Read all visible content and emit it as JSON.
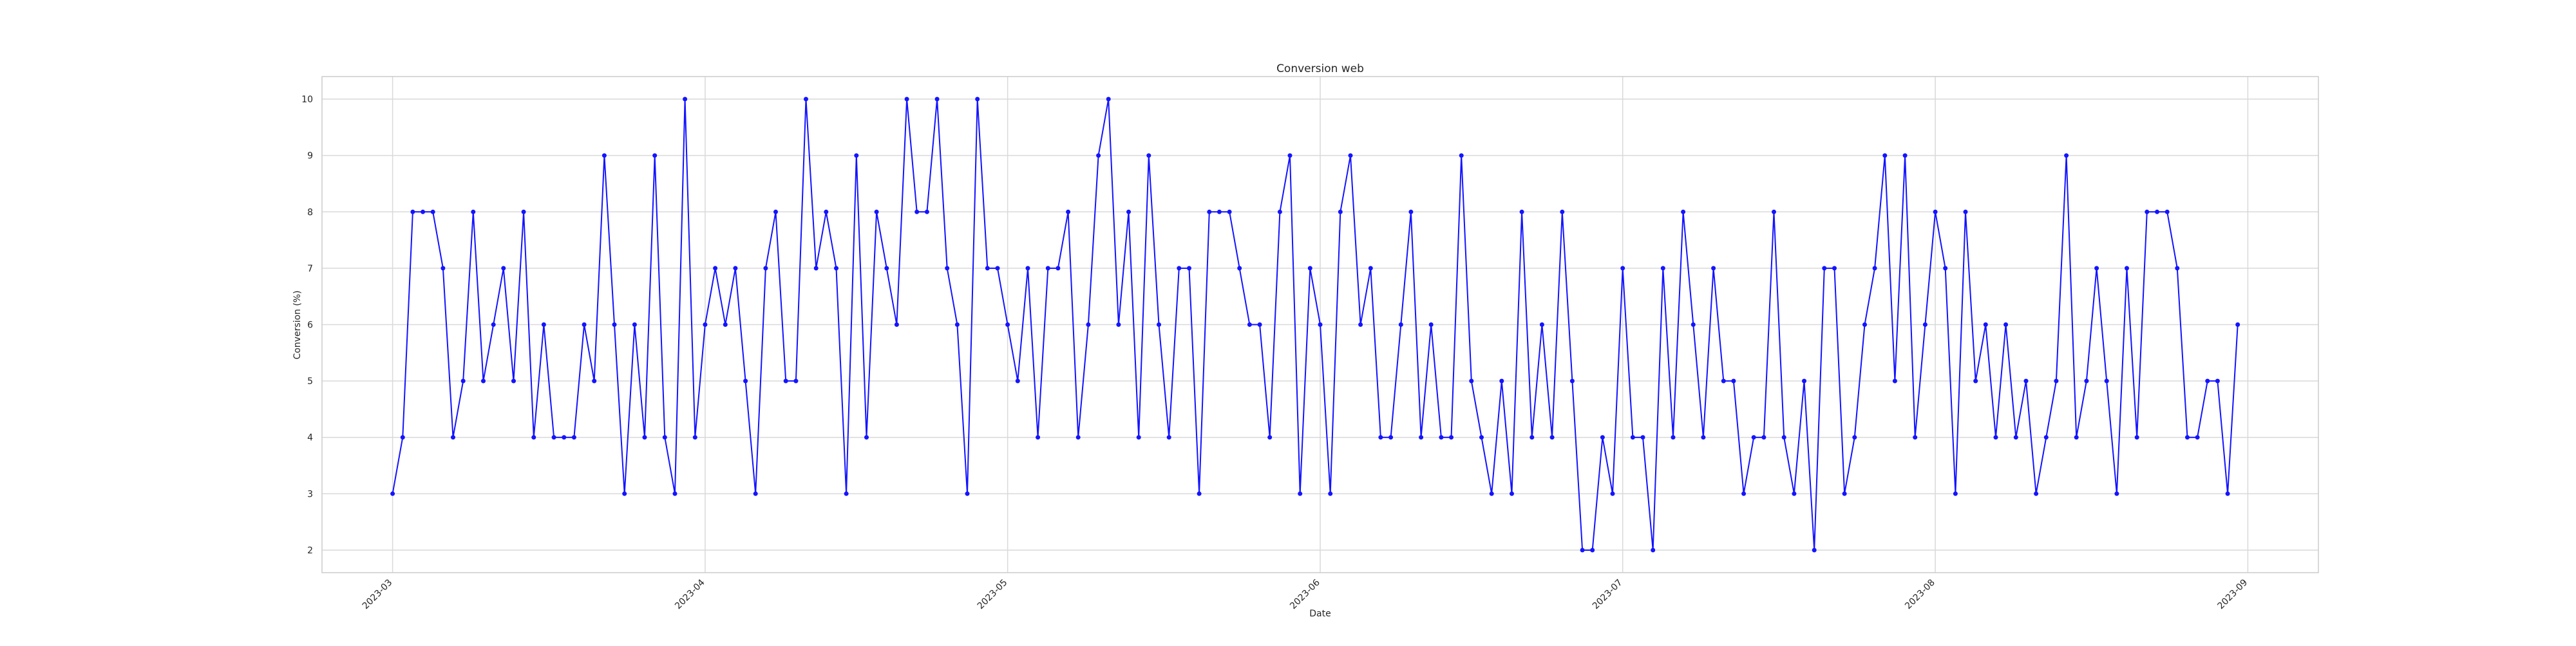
{
  "chart_data": {
    "type": "line",
    "title": "Conversion web",
    "xlabel": "Date",
    "ylabel": "Conversion (%)",
    "grid": true,
    "legend": "none",
    "series_color": "#1414ff",
    "ylim": [
      1.6,
      10.4
    ],
    "yticks": [
      2,
      3,
      4,
      5,
      6,
      7,
      8,
      9,
      10
    ],
    "xlim": [
      "2023-02-22",
      "2023-09-08"
    ],
    "xticks": [
      "2023-03",
      "2023-04",
      "2023-05",
      "2023-06",
      "2023-07",
      "2023-08",
      "2023-09"
    ],
    "xtick_dates": [
      "2023-03-01",
      "2023-04-01",
      "2023-05-01",
      "2023-06-01",
      "2023-07-01",
      "2023-08-01",
      "2023-09-01"
    ],
    "start_date": "2023-03-01",
    "step_days": 1,
    "series": [
      {
        "name": "Conversion web",
        "values": [
          3,
          4,
          8,
          8,
          8,
          7,
          4,
          5,
          8,
          5,
          6,
          7,
          5,
          8,
          4,
          6,
          4,
          4,
          4,
          6,
          5,
          9,
          6,
          3,
          6,
          4,
          9,
          4,
          3,
          10,
          4,
          6,
          7,
          6,
          7,
          5,
          3,
          7,
          8,
          5,
          5,
          10,
          7,
          8,
          7,
          3,
          9,
          4,
          8,
          7,
          6,
          10,
          8,
          8,
          10,
          7,
          6,
          3,
          10,
          7,
          7,
          6,
          5,
          7,
          4,
          7,
          7,
          8,
          4,
          6,
          9,
          10,
          6,
          8,
          4,
          9,
          6,
          4,
          7,
          7,
          3,
          8,
          8,
          8,
          7,
          6,
          6,
          4,
          8,
          9,
          3,
          7,
          6,
          3,
          8,
          9,
          6,
          7,
          4,
          4,
          6,
          8,
          4,
          6,
          4,
          4,
          9,
          5,
          4,
          3,
          5,
          3,
          8,
          4,
          6,
          4,
          8,
          5,
          2,
          2,
          4,
          3,
          7,
          4,
          4,
          2,
          7,
          4,
          8,
          6,
          4,
          7,
          5,
          5,
          3,
          4,
          4,
          8,
          4,
          3,
          5,
          2,
          7,
          7,
          3,
          4,
          6,
          7,
          9,
          5,
          9,
          4,
          6,
          8,
          7,
          3,
          8,
          5,
          6,
          4,
          6,
          4,
          5,
          3,
          4,
          5,
          9,
          4,
          5,
          7,
          5,
          3,
          7,
          4,
          8,
          8,
          8,
          7,
          4,
          4,
          5,
          5,
          3,
          6
        ]
      }
    ]
  }
}
